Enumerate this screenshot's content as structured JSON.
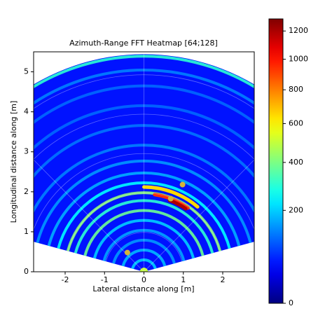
{
  "chart_data": {
    "type": "heatmap",
    "title": "Azimuth-Range FFT Heatmap [64;128]",
    "x_label": "Lateral distance along [m]",
    "y_label": "Longitudinal distance along [m]",
    "xlim": [
      -2.8,
      2.8
    ],
    "ylim": [
      0,
      5.5
    ],
    "xticks": [
      -2,
      -1,
      0,
      1,
      2
    ],
    "yticks": [
      0,
      1,
      2,
      3,
      4,
      5
    ],
    "fan_half_angle_deg": 75,
    "max_range": 5.5,
    "background_value": 50,
    "rings": {
      "ranges": [
        0.3,
        0.55,
        0.8,
        1.05,
        1.3,
        1.55,
        1.8,
        2.0,
        2.25,
        2.5,
        2.8,
        3.2,
        3.7,
        4.2,
        4.7,
        5.1,
        5.45
      ],
      "values": [
        200,
        180,
        150,
        160,
        200,
        380,
        300,
        420,
        250,
        170,
        150,
        130,
        120,
        110,
        110,
        130,
        300
      ]
    },
    "hotspots": {
      "ranges": [
        0.05,
        2.12,
        1.95,
        1.9
      ],
      "from_deg": [
        -75,
        0,
        8,
        20
      ],
      "to_deg": [
        75,
        40,
        35,
        34
      ],
      "values": [
        500,
        650,
        950,
        1200
      ]
    },
    "detections": {
      "x": [
        -0.42,
        0.68,
        0.98
      ],
      "y": [
        0.48,
        1.83,
        2.18
      ],
      "color": "#d4b33a"
    },
    "colorbar": {
      "clim": [
        0,
        1290
      ],
      "gamma": 0.6,
      "colormap": "jet",
      "ticks": [
        0,
        200,
        400,
        600,
        800,
        1000,
        1200
      ]
    },
    "polar_grid": {
      "ranges": [
        1,
        2,
        3,
        4,
        5
      ],
      "angles_deg": [
        -45,
        0,
        45
      ]
    }
  }
}
